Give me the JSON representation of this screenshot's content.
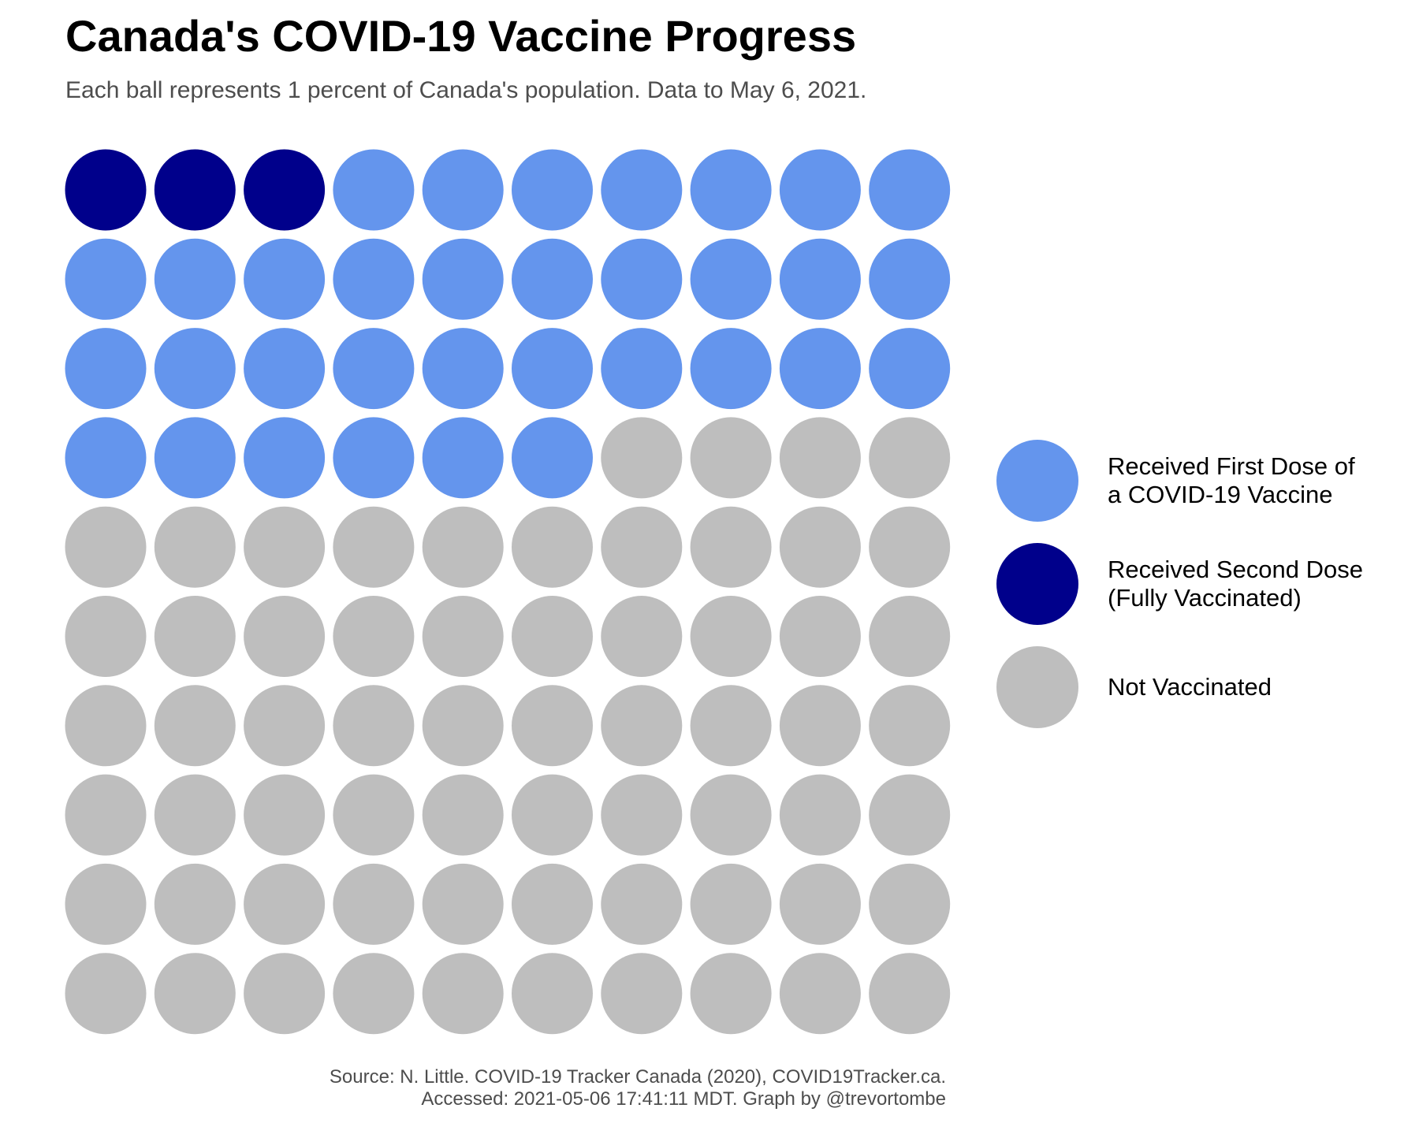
{
  "title": "Canada's COVID-19 Vaccine Progress",
  "subtitle": "Each ball represents 1 percent of Canada's population. Data to May 6, 2021.",
  "caption": {
    "line1": "Source: N. Little. COVID-19 Tracker Canada (2020), COVID19Tracker.ca.",
    "line2": "Accessed: 2021-05-06 17:41:11 MDT. Graph by @trevortombe"
  },
  "colors": {
    "second_dose": "#00008b",
    "first_dose": "#6495ed",
    "not_vaccinated": "#bebebe"
  },
  "legend": [
    {
      "key": "first_dose",
      "label": "Received First Dose of\na COVID-19 Vaccine",
      "color": "#6495ed"
    },
    {
      "key": "second_dose",
      "label": "Received Second Dose\n(Fully Vaccinated)",
      "color": "#00008b"
    },
    {
      "key": "not_vaccinated",
      "label": "Not Vaccinated",
      "color": "#bebebe"
    }
  ],
  "chart_data": {
    "type": "waffle",
    "unit": "1 percent of Canada's population",
    "grid": {
      "rows": 10,
      "cols": 10
    },
    "categories": [
      "Received Second Dose (Fully Vaccinated)",
      "Received First Dose of a COVID-19 Vaccine",
      "Not Vaccinated"
    ],
    "values": [
      3,
      33,
      64
    ],
    "series": [
      {
        "name": "Received Second Dose (Fully Vaccinated)",
        "key": "second_dose",
        "value": 3,
        "color": "#00008b"
      },
      {
        "name": "Received First Dose of a COVID-19 Vaccine",
        "key": "first_dose",
        "value": 33,
        "color": "#6495ed"
      },
      {
        "name": "Not Vaccinated",
        "key": "not_vaccinated",
        "value": 64,
        "color": "#bebebe"
      }
    ],
    "fill_order": "row-major from top-left",
    "legend_position": "right"
  }
}
